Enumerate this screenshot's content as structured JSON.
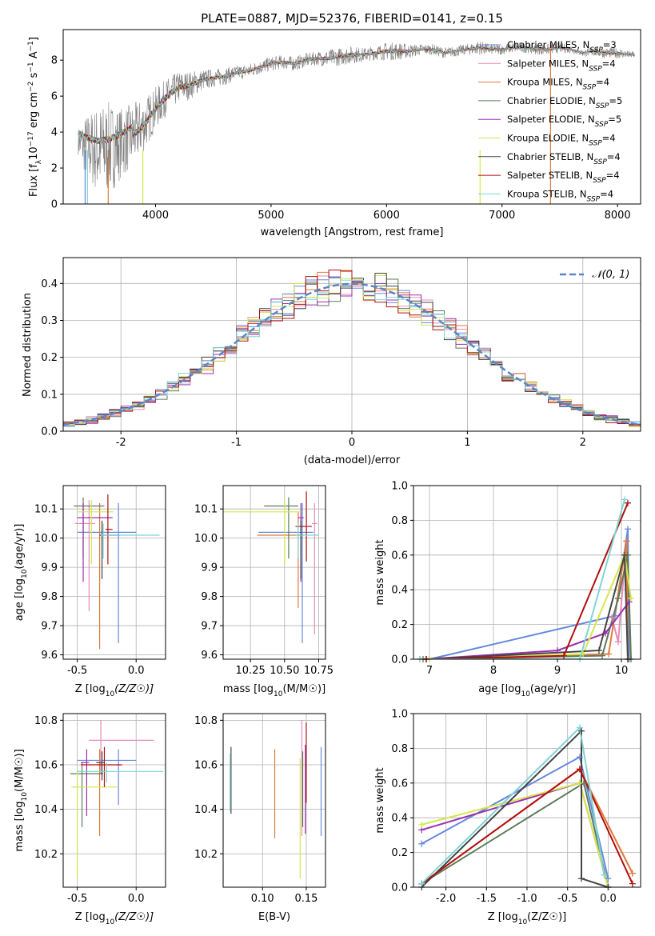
{
  "figure_title": "PLATE=0887, MJD=52376, FIBERID=0141, z=0.15",
  "colors": {
    "chabrier_miles": "#6688dd",
    "salpeter_miles": "#e88ab8",
    "kroupa_miles": "#e07b39",
    "chabrier_elodie": "#5c7a5c",
    "salpeter_elodie": "#9b30b0",
    "kroupa_elodie": "#d4e84a",
    "chabrier_stelib": "#444444",
    "salpeter_stelib": "#b01010",
    "kroupa_stelib": "#80d4d4",
    "data_gray": "#808080",
    "normal_curve": "#5a86c8",
    "grid": "#b0b0b0"
  },
  "chart_data": [
    {
      "id": "spectrum",
      "type": "line",
      "title": "PLATE=0887, MJD=52376, FIBERID=0141, z=0.15",
      "xlabel": "wavelength [Angstrom, rest frame]",
      "ylabel": "Flux [f_λ 10^-17 erg cm^-2 s^-1 A^-1]",
      "xlim": [
        3200,
        8200
      ],
      "ylim": [
        0,
        9.7
      ],
      "xticks": [
        4000,
        5000,
        6000,
        7000,
        8000
      ],
      "yticks": [
        0,
        2,
        4,
        6,
        8
      ],
      "grid": false,
      "legend_position": "top-right",
      "legend": [
        "Chabrier MILES, N_SSP=3",
        "Salpeter MILES, N_SSP=4",
        "Kroupa MILES, N_SSP=4",
        "Chabrier ELODIE, N_SSP=5",
        "Salpeter ELODIE, N_SSP=5",
        "Kroupa ELODIE, N_SSP=4",
        "Chabrier STELIB, N_SSP=4",
        "Salpeter STELIB, N_SSP=4",
        "Kroupa STELIB, N_SSP=4"
      ],
      "data_envelope": {
        "x": [
          3300,
          3400,
          3500,
          3600,
          3700,
          3800,
          3900,
          4000,
          4100,
          4200,
          4300,
          4400,
          4500,
          4600,
          4700,
          4800,
          4900,
          5000,
          5100,
          5200,
          5300,
          5400,
          5500,
          5600,
          5700,
          5800,
          5900,
          6000,
          6100,
          6200,
          6300,
          6400,
          6500,
          6600,
          6700,
          6800,
          6900,
          7000,
          7100,
          7200,
          7300,
          7400,
          7500,
          7600,
          7700,
          7800,
          7900,
          8000,
          8100
        ],
        "y": [
          3.6,
          3.2,
          3.0,
          3.1,
          3.4,
          3.8,
          4.4,
          5.3,
          6.0,
          6.5,
          6.6,
          6.9,
          7.0,
          7.1,
          7.3,
          7.4,
          7.6,
          7.8,
          7.9,
          7.8,
          8.0,
          8.1,
          8.1,
          8.2,
          8.3,
          8.3,
          8.4,
          8.5,
          8.5,
          8.5,
          8.6,
          8.6,
          8.4,
          8.5,
          8.6,
          8.7,
          8.6,
          8.6,
          8.7,
          8.7,
          8.6,
          8.6,
          8.7,
          8.6,
          8.4,
          8.5,
          8.4,
          8.4,
          8.3
        ],
        "noise": [
          0.3,
          1.8,
          2.5,
          2.6,
          2.0,
          1.8,
          1.5,
          1.2,
          1.0,
          0.9,
          0.8,
          0.6,
          0.5,
          0.5,
          0.4,
          0.4,
          0.4,
          0.4,
          0.4,
          0.4,
          0.4,
          0.4,
          0.5,
          0.5,
          0.5,
          0.4,
          0.4,
          0.5,
          0.5,
          0.4,
          0.3,
          0.3,
          0.3,
          0.3,
          0.3,
          0.4,
          0.3,
          0.3,
          0.3,
          0.3,
          0.3,
          0.3,
          0.3,
          0.2,
          0.2,
          0.3,
          0.3,
          0.3,
          0.2
        ]
      }
    },
    {
      "id": "residuals",
      "type": "step",
      "xlabel": "(data-model)/error",
      "ylabel": "Normed distribution",
      "xlim": [
        -2.5,
        2.5
      ],
      "ylim": [
        0,
        0.47
      ],
      "xticks": [
        -2,
        -1,
        0,
        1,
        2
      ],
      "yticks": [
        0.0,
        0.1,
        0.2,
        0.3,
        0.4
      ],
      "grid": true,
      "legend_position": "top-right",
      "normal_label": "𝒩(0, 1)",
      "bin_width": 0.1
    },
    {
      "id": "age_vs_Z",
      "type": "errorbar",
      "xlabel": "Z [log10(Z/Z☉)]",
      "ylabel": "age [log10(age/yr)]",
      "xlim": [
        -0.62,
        0.25
      ],
      "ylim": [
        9.585,
        10.18
      ],
      "xticks": [
        -0.5,
        0.0
      ],
      "yticks": [
        9.6,
        9.7,
        9.8,
        9.9,
        10.0,
        10.1
      ],
      "grid": true,
      "points": [
        {
          "series": "chabrier_miles",
          "x": -0.15,
          "y": 10.02,
          "xerr": [
            0.35,
            0.15
          ],
          "yerr": [
            0.38,
            0.1
          ]
        },
        {
          "series": "salpeter_miles",
          "x": -0.4,
          "y": 10.05,
          "xerr": [
            0.12,
            0.05
          ],
          "yerr": [
            0.3,
            0.08
          ]
        },
        {
          "series": "kroupa_miles",
          "x": -0.31,
          "y": 10.07,
          "xerr": [
            0.02,
            0.02
          ],
          "yerr": [
            0.45,
            0.05
          ]
        },
        {
          "series": "chabrier_elodie",
          "x": -0.45,
          "y": 10.11,
          "xerr": [
            0.08,
            0.18
          ],
          "yerr": [
            0.18,
            0.03
          ]
        },
        {
          "series": "salpeter_elodie",
          "x": -0.45,
          "y": 10.07,
          "xerr": [
            0.05,
            0.25
          ],
          "yerr": [
            0.22,
            0.05
          ]
        },
        {
          "series": "kroupa_elodie",
          "x": -0.38,
          "y": 10.09,
          "xerr": [
            0.12,
            0.19
          ],
          "yerr": [
            0.18,
            0.04
          ]
        },
        {
          "series": "chabrier_stelib",
          "x": -0.29,
          "y": 10.01,
          "xerr": [
            0.02,
            0.15
          ],
          "yerr": [
            0.15,
            0.05
          ]
        },
        {
          "series": "salpeter_stelib",
          "x": -0.24,
          "y": 10.03,
          "xerr": [
            0.02,
            0.04
          ],
          "yerr": [
            0.12,
            0.12
          ]
        },
        {
          "series": "kroupa_stelib",
          "x": -0.28,
          "y": 10.01,
          "xerr": [
            0.02,
            0.48
          ],
          "yerr": [
            0.08,
            0.04
          ]
        }
      ]
    },
    {
      "id": "age_vs_mass",
      "type": "errorbar",
      "xlabel": "mass [log10(M/M☉)]",
      "ylabel": "",
      "xlim": [
        10.05,
        10.8
      ],
      "ylim": [
        9.585,
        10.18
      ],
      "xticks": [
        10.25,
        10.5,
        10.75
      ],
      "yticks": [
        9.6,
        9.7,
        9.8,
        9.9,
        10.0,
        10.1
      ],
      "grid": true,
      "points": [
        {
          "series": "chabrier_miles",
          "x": 10.63,
          "y": 10.02,
          "xerr": [
            0.32,
            0.08
          ],
          "yerr": [
            0.38,
            0.1
          ]
        },
        {
          "series": "salpeter_miles",
          "x": 10.72,
          "y": 10.05,
          "xerr": [
            0.02,
            0.02
          ],
          "yerr": [
            0.38,
            0.07
          ]
        },
        {
          "series": "kroupa_miles",
          "x": 10.6,
          "y": 10.01,
          "xerr": [
            0.3,
            0.02
          ],
          "yerr": [
            0.25,
            0.08
          ]
        },
        {
          "series": "chabrier_elodie",
          "x": 10.53,
          "y": 10.11,
          "xerr": [
            0.18,
            0.07
          ],
          "yerr": [
            0.18,
            0.03
          ]
        },
        {
          "series": "salpeter_elodie",
          "x": 10.62,
          "y": 10.07,
          "xerr": [
            0.02,
            0.02
          ],
          "yerr": [
            0.22,
            0.05
          ]
        },
        {
          "series": "kroupa_elodie",
          "x": 10.5,
          "y": 10.09,
          "xerr": [
            0.45,
            0.12
          ],
          "yerr": [
            0.18,
            0.04
          ]
        },
        {
          "series": "chabrier_stelib",
          "x": 10.62,
          "y": 10.01,
          "xerr": [
            0.02,
            0.02
          ],
          "yerr": [
            0.15,
            0.05
          ]
        },
        {
          "series": "salpeter_stelib",
          "x": 10.66,
          "y": 10.04,
          "xerr": [
            0.08,
            0.04
          ],
          "yerr": [
            0.12,
            0.12
          ]
        },
        {
          "series": "kroupa_stelib",
          "x": 10.6,
          "y": 10.01,
          "xerr": [
            0.02,
            0.15
          ],
          "yerr": [
            0.08,
            0.04
          ]
        }
      ]
    },
    {
      "id": "weight_vs_age",
      "type": "line",
      "xlabel": "age [log10(age/yr)]",
      "ylabel": "mass weight",
      "xlim": [
        6.75,
        10.3
      ],
      "ylim": [
        0,
        1.0
      ],
      "xticks": [
        7,
        8,
        9,
        10
      ],
      "yticks": [
        0.0,
        0.2,
        0.4,
        0.6,
        0.8,
        1.0
      ],
      "grid": true,
      "series": [
        {
          "name": "chabrier_miles",
          "x": [
            7.0,
            9.9,
            10.1,
            10.12
          ],
          "y": [
            0.0,
            0.25,
            0.75,
            0.0
          ]
        },
        {
          "name": "salpeter_miles",
          "x": [
            9.85,
            9.95,
            10.08,
            10.1
          ],
          "y": [
            0.24,
            0.1,
            0.68,
            0.0
          ]
        },
        {
          "name": "kroupa_miles",
          "x": [
            6.85,
            9.8,
            10.08,
            10.1
          ],
          "y": [
            0.0,
            0.03,
            0.68,
            0.0
          ]
        },
        {
          "name": "chabrier_elodie",
          "x": [
            6.9,
            9.7,
            9.95,
            10.1,
            10.15
          ],
          "y": [
            0.0,
            0.02,
            0.35,
            0.6,
            0.0
          ]
        },
        {
          "name": "salpeter_elodie",
          "x": [
            6.95,
            9.0,
            9.75,
            10.12
          ],
          "y": [
            0.0,
            0.05,
            0.15,
            0.33
          ]
        },
        {
          "name": "kroupa_elodie",
          "x": [
            7.0,
            9.4,
            10.05,
            10.15
          ],
          "y": [
            0.0,
            0.03,
            0.6,
            0.35
          ]
        },
        {
          "name": "chabrier_stelib",
          "x": [
            6.95,
            9.65,
            10.05,
            10.1
          ],
          "y": [
            0.0,
            0.05,
            0.6,
            0.0
          ]
        },
        {
          "name": "salpeter_stelib",
          "x": [
            6.95,
            9.1,
            10.1
          ],
          "y": [
            0.0,
            0.02,
            0.9
          ]
        },
        {
          "name": "kroupa_stelib",
          "x": [
            6.85,
            9.35,
            10.05
          ],
          "y": [
            0.0,
            0.0,
            0.92
          ]
        }
      ]
    },
    {
      "id": "mass_vs_Z",
      "type": "errorbar",
      "xlabel": "Z [log10(Z/Z☉)]",
      "ylabel": "mass [log10(M/M☉)]",
      "xlim": [
        -0.62,
        0.25
      ],
      "ylim": [
        10.05,
        10.83
      ],
      "xticks": [
        -0.5,
        0.0
      ],
      "yticks": [
        10.2,
        10.4,
        10.6,
        10.8
      ],
      "grid": true,
      "points": [
        {
          "series": "chabrier_miles",
          "x": -0.15,
          "y": 10.62,
          "xerr": [
            0.35,
            0.15
          ],
          "yerr": [
            0.2,
            0.05
          ]
        },
        {
          "series": "salpeter_miles",
          "x": -0.3,
          "y": 10.71,
          "xerr": [
            0.1,
            0.45
          ],
          "yerr": [
            0.15,
            0.09
          ]
        },
        {
          "series": "kroupa_miles",
          "x": -0.31,
          "y": 10.6,
          "xerr": [
            0.02,
            0.02
          ],
          "yerr": [
            0.32,
            0.07
          ]
        },
        {
          "series": "chabrier_elodie",
          "x": -0.46,
          "y": 10.56,
          "xerr": [
            0.1,
            0.18
          ],
          "yerr": [
            0.24,
            0.05
          ]
        },
        {
          "series": "salpeter_elodie",
          "x": -0.42,
          "y": 10.61,
          "xerr": [
            0.05,
            0.02
          ],
          "yerr": [
            0.24,
            0.06
          ]
        },
        {
          "series": "kroupa_elodie",
          "x": -0.5,
          "y": 10.5,
          "xerr": [
            0.05,
            0.35
          ],
          "yerr": [
            0.41,
            0.07
          ]
        },
        {
          "series": "chabrier_stelib",
          "x": -0.29,
          "y": 10.61,
          "xerr": [
            0.05,
            0.02
          ],
          "yerr": [
            0.08,
            0.05
          ]
        },
        {
          "series": "salpeter_stelib",
          "x": -0.27,
          "y": 10.6,
          "xerr": [
            0.2,
            0.15
          ],
          "yerr": [
            0.1,
            0.08
          ]
        },
        {
          "series": "kroupa_stelib",
          "x": -0.25,
          "y": 10.57,
          "xerr": [
            0.25,
            0.48
          ],
          "yerr": [
            0.05,
            0.04
          ]
        }
      ]
    },
    {
      "id": "mass_vs_ebv",
      "type": "errorbar",
      "xlabel": "E(B-V)",
      "ylabel": "",
      "xlim": [
        0.055,
        0.172
      ],
      "ylim": [
        10.05,
        10.83
      ],
      "xticks": [
        0.1,
        0.15
      ],
      "yticks": [
        10.2,
        10.4,
        10.6,
        10.8
      ],
      "grid": true,
      "points": [
        {
          "series": "chabrier_miles",
          "x": 0.167,
          "y": 10.48,
          "xerr": [
            0,
            0
          ],
          "yerr": [
            0.2,
            0.2
          ]
        },
        {
          "series": "salpeter_miles",
          "x": 0.145,
          "y": 10.54,
          "xerr": [
            0,
            0
          ],
          "yerr": [
            0.26,
            0.26
          ]
        },
        {
          "series": "kroupa_miles",
          "x": 0.114,
          "y": 10.47,
          "xerr": [
            0,
            0
          ],
          "yerr": [
            0.2,
            0.2
          ]
        },
        {
          "series": "chabrier_elodie",
          "x": 0.146,
          "y": 10.49,
          "xerr": [
            0,
            0
          ],
          "yerr": [
            0.17,
            0.17
          ]
        },
        {
          "series": "salpeter_elodie",
          "x": 0.149,
          "y": 10.49,
          "xerr": [
            0,
            0
          ],
          "yerr": [
            0.2,
            0.2
          ]
        },
        {
          "series": "kroupa_elodie",
          "x": 0.143,
          "y": 10.36,
          "xerr": [
            0,
            0
          ],
          "yerr": [
            0.27,
            0.27
          ]
        },
        {
          "series": "chabrier_stelib",
          "x": 0.064,
          "y": 10.53,
          "xerr": [
            0,
            0
          ],
          "yerr": [
            0.15,
            0.15
          ]
        },
        {
          "series": "salpeter_stelib",
          "x": 0.15,
          "y": 10.61,
          "xerr": [
            0,
            0
          ],
          "yerr": [
            0.18,
            0.18
          ]
        },
        {
          "series": "kroupa_stelib",
          "x": 0.063,
          "y": 10.52,
          "xerr": [
            0,
            0
          ],
          "yerr": [
            0.13,
            0.13
          ]
        }
      ]
    },
    {
      "id": "weight_vs_Z",
      "type": "line",
      "xlabel": "Z [log10(Z/Z☉)]",
      "ylabel": "mass weight",
      "xlim": [
        -2.4,
        0.4
      ],
      "ylim": [
        0,
        1.0
      ],
      "xticks": [
        -2.0,
        -1.5,
        -1.0,
        -0.5,
        0.0
      ],
      "yticks": [
        0.0,
        0.2,
        0.4,
        0.6,
        0.8,
        1.0
      ],
      "grid": true,
      "series": [
        {
          "name": "chabrier_miles",
          "x": [
            -2.3,
            -0.35,
            0.0
          ],
          "y": [
            0.25,
            0.75,
            0.05
          ]
        },
        {
          "name": "salpeter_miles",
          "x": [
            -2.3,
            -0.35,
            0.3
          ],
          "y": [
            0.02,
            0.68,
            0.08
          ]
        },
        {
          "name": "kroupa_miles",
          "x": [
            -2.3,
            -0.35,
            0.3
          ],
          "y": [
            0.02,
            0.68,
            0.08
          ]
        },
        {
          "name": "chabrier_elodie",
          "x": [
            -2.3,
            -0.3,
            0.0
          ],
          "y": [
            0.02,
            0.6,
            0.0
          ]
        },
        {
          "name": "salpeter_elodie",
          "x": [
            -2.3,
            -0.35,
            0.0
          ],
          "y": [
            0.33,
            0.6,
            0.0
          ]
        },
        {
          "name": "kroupa_elodie",
          "x": [
            -2.3,
            -0.35,
            0.0
          ],
          "y": [
            0.36,
            0.6,
            0.0
          ]
        },
        {
          "name": "chabrier_stelib",
          "x": [
            -2.3,
            -0.33,
            -0.33,
            0.0
          ],
          "y": [
            0.0,
            0.9,
            0.05,
            0.0
          ]
        },
        {
          "name": "salpeter_stelib",
          "x": [
            -2.3,
            -0.35,
            0.3
          ],
          "y": [
            0.02,
            0.68,
            0.02
          ]
        },
        {
          "name": "kroupa_stelib",
          "x": [
            -2.3,
            -0.35,
            -0.05
          ],
          "y": [
            0.02,
            0.92,
            0.07
          ]
        }
      ]
    }
  ]
}
